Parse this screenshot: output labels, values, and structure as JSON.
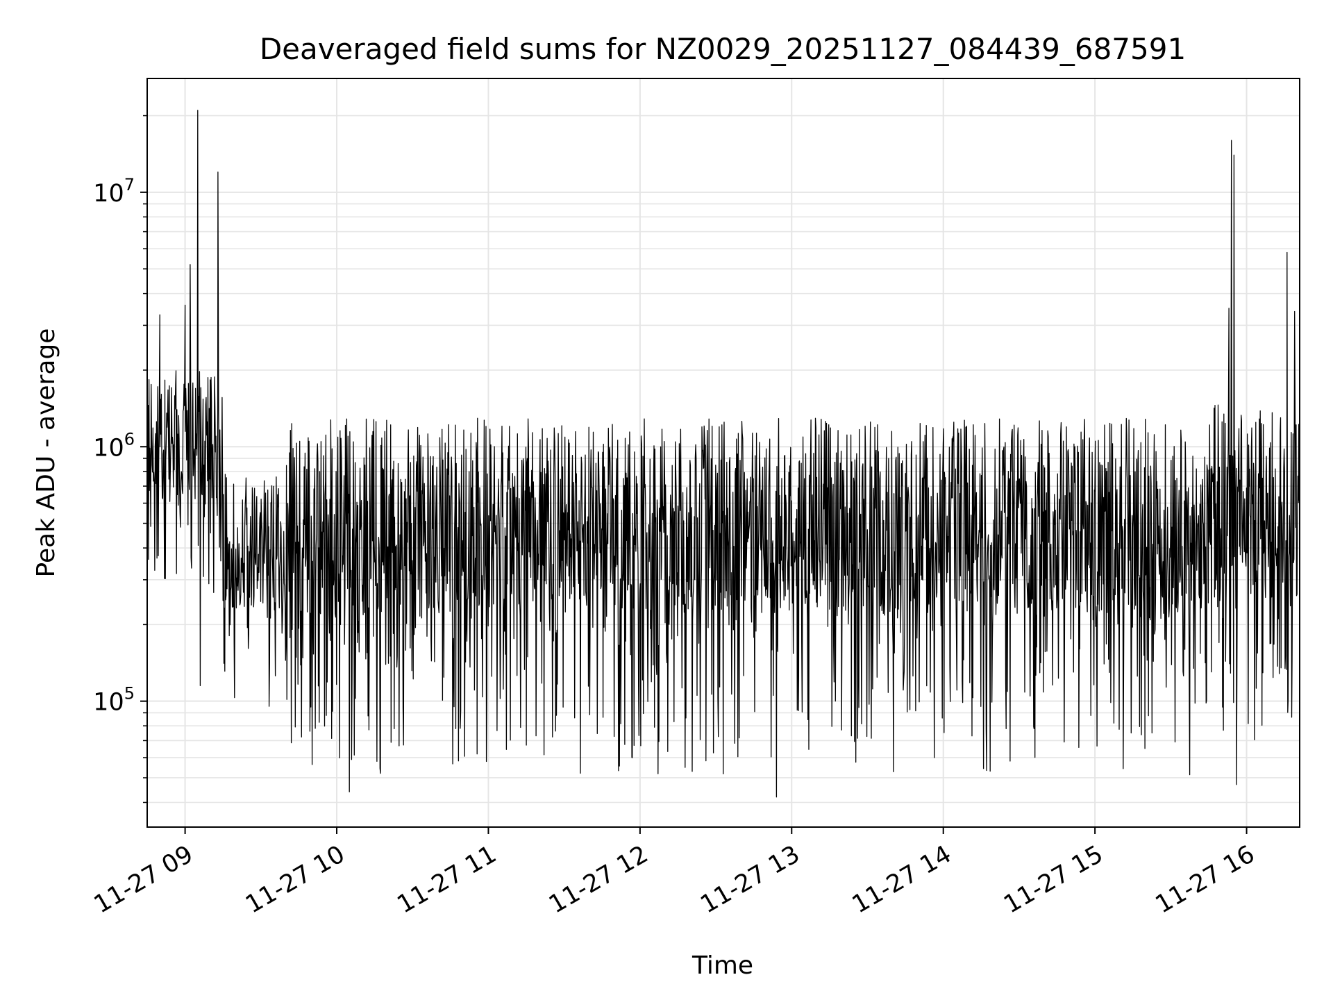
{
  "chart_data": {
    "type": "line",
    "title": "Deaveraged field sums for NZ0029_20251127_084439_687591",
    "xlabel": "Time",
    "ylabel": "Peak ADU - average",
    "x_axis": {
      "kind": "time",
      "range": [
        "2025-11-27 08:45",
        "2025-11-27 16:21"
      ],
      "tick_values": [
        "2025-11-27 09:00",
        "2025-11-27 10:00",
        "2025-11-27 11:00",
        "2025-11-27 12:00",
        "2025-11-27 13:00",
        "2025-11-27 14:00",
        "2025-11-27 15:00",
        "2025-11-27 16:00"
      ],
      "tick_labels": [
        "11-27 09",
        "11-27 10",
        "11-27 11",
        "11-27 12",
        "11-27 13",
        "11-27 14",
        "11-27 15",
        "11-27 16"
      ],
      "tick_rotation_deg": 30
    },
    "y_axis": {
      "scale": "log",
      "range": [
        32000,
        28000000
      ],
      "tick_values": [
        100000,
        1000000,
        10000000
      ],
      "tick_labels": [
        {
          "base": "10",
          "exp": "5"
        },
        {
          "base": "10",
          "exp": "6"
        },
        {
          "base": "10",
          "exp": "7"
        }
      ]
    },
    "grid": true,
    "legend": "none",
    "series_color": "#000000",
    "grid_color": "#e5e5e5",
    "series": [
      {
        "description_segments": [
          {
            "from": "2025-11-27 08:45",
            "to": "2025-11-27 09:15",
            "low": 220000,
            "high": 2000000
          },
          {
            "from": "2025-11-27 09:15",
            "to": "2025-11-27 09:40",
            "low": 80000,
            "high": 800000
          },
          {
            "from": "2025-11-27 09:40",
            "to": "2025-11-27 15:45",
            "low": 50000,
            "high": 1300000
          },
          {
            "from": "2025-11-27 15:45",
            "to": "2025-11-27 16:21",
            "low": 60000,
            "high": 1500000
          }
        ],
        "spikes": [
          {
            "x": "2025-11-27 08:50",
            "y": 3300000
          },
          {
            "x": "2025-11-27 09:00",
            "y": 3600000
          },
          {
            "x": "2025-11-27 09:02",
            "y": 5200000
          },
          {
            "x": "2025-11-27 09:05",
            "y": 21000000
          },
          {
            "x": "2025-11-27 09:13",
            "y": 12000000
          },
          {
            "x": "2025-11-27 09:06",
            "y": 115000
          },
          {
            "x": "2025-11-27 15:54",
            "y": 16000000
          },
          {
            "x": "2025-11-27 15:55",
            "y": 14000000
          },
          {
            "x": "2025-11-27 15:53",
            "y": 3500000
          },
          {
            "x": "2025-11-27 16:16",
            "y": 5800000
          },
          {
            "x": "2025-11-27 16:19",
            "y": 3400000
          },
          {
            "x": "2025-11-27 12:54",
            "y": 42000
          },
          {
            "x": "2025-11-27 10:05",
            "y": 44000
          },
          {
            "x": "2025-11-27 15:56",
            "y": 47000
          }
        ],
        "seed": 29
      }
    ]
  }
}
